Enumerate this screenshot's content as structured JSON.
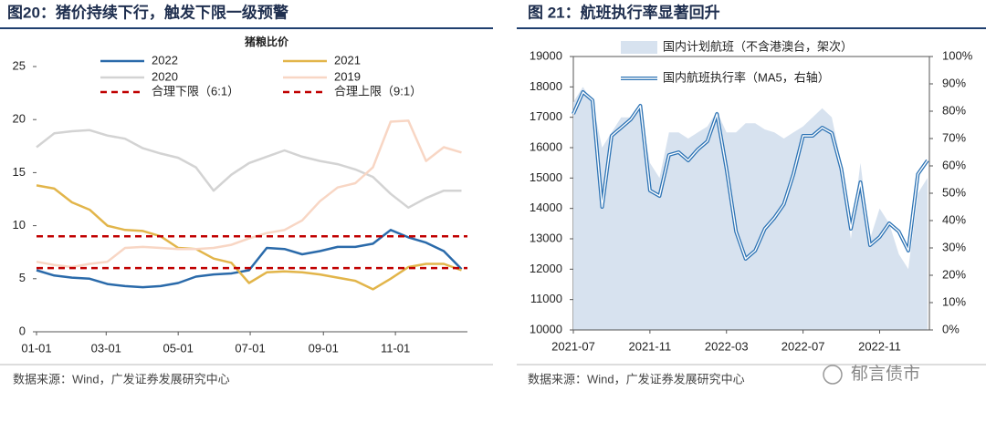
{
  "chart_data": [
    {
      "type": "line",
      "title": "图20：猪价持续下行，触发下限一级预警",
      "subtitle": "猪粮比价",
      "source": "数据来源：Wind，广发证券发展研究中心",
      "x": [
        0,
        15,
        30,
        45,
        60,
        75,
        90,
        105,
        120,
        135,
        150,
        165,
        180,
        195,
        210,
        225,
        240,
        255,
        270,
        285,
        300,
        315,
        330,
        345,
        360
      ],
      "xlim": [
        0,
        365
      ],
      "xticks": [
        {
          "value": 0,
          "label": "01-01"
        },
        {
          "value": 59,
          "label": "03-01"
        },
        {
          "value": 120,
          "label": "05-01"
        },
        {
          "value": 181,
          "label": "07-01"
        },
        {
          "value": 243,
          "label": "09-01"
        },
        {
          "value": 304,
          "label": "11-01"
        }
      ],
      "ylim": [
        0,
        25
      ],
      "yticks": [
        0,
        5,
        10,
        15,
        20,
        25
      ],
      "series": [
        {
          "name": "2022",
          "color": "#2a6aaa",
          "linestyle": "solid",
          "values": [
            5.8,
            5.3,
            5.1,
            5.0,
            4.5,
            4.3,
            4.2,
            4.3,
            4.6,
            5.2,
            5.4,
            5.5,
            5.8,
            7.9,
            7.8,
            7.3,
            7.6,
            8.0,
            8.0,
            8.3,
            9.6,
            8.9,
            8.4,
            7.6,
            5.9
          ]
        },
        {
          "name": "2021",
          "color": "#e2b54a",
          "linestyle": "solid",
          "values": [
            13.8,
            13.5,
            12.2,
            11.5,
            10.0,
            9.6,
            9.5,
            9.0,
            7.9,
            7.8,
            6.9,
            6.5,
            4.6,
            5.6,
            5.7,
            5.6,
            5.4,
            5.1,
            4.8,
            4.0,
            5.0,
            6.1,
            6.4,
            6.4,
            5.8
          ]
        },
        {
          "name": "2020",
          "color": "#d3d3d3",
          "linestyle": "solid",
          "values": [
            17.4,
            18.7,
            18.9,
            19.0,
            18.5,
            18.2,
            17.3,
            16.8,
            16.4,
            15.5,
            13.3,
            14.8,
            15.9,
            16.5,
            17.1,
            16.5,
            16.1,
            15.8,
            15.3,
            14.6,
            13.0,
            11.7,
            12.6,
            13.3,
            13.3
          ]
        },
        {
          "name": "2019",
          "color": "#f8d6c4",
          "linestyle": "solid",
          "values": [
            6.6,
            6.3,
            6.1,
            6.4,
            6.6,
            7.9,
            8.0,
            7.9,
            7.8,
            7.8,
            7.9,
            8.2,
            8.8,
            9.3,
            9.6,
            10.5,
            12.3,
            13.6,
            14.0,
            15.5,
            19.8,
            19.9,
            16.1,
            17.4,
            16.9
          ]
        }
      ],
      "hlines": [
        {
          "name": "合理下限（6:1）",
          "color": "#c00000",
          "linestyle": "dashed",
          "value": 6
        },
        {
          "name": "合理上限（9:1）",
          "color": "#c00000",
          "linestyle": "dashed",
          "value": 9
        }
      ],
      "grid": false
    },
    {
      "type": "line",
      "title": "图 21：航班执行率显著回升",
      "source": "数据来源：Wind，广发证券发展研究中心",
      "x": [
        0,
        0.5,
        1,
        1.5,
        2,
        2.5,
        3,
        3.5,
        4,
        4.5,
        5,
        5.5,
        6,
        6.5,
        7,
        7.5,
        8,
        8.5,
        9,
        9.5,
        10,
        10.5,
        11,
        11.5,
        12,
        12.5,
        13,
        13.5,
        14,
        14.5,
        15,
        15.5,
        16,
        16.5,
        17,
        17.5,
        18,
        18.5
      ],
      "xlim": [
        0,
        18.6
      ],
      "xticks": [
        {
          "value": 0,
          "label": "2021-07"
        },
        {
          "value": 4,
          "label": "2021-11"
        },
        {
          "value": 8,
          "label": "2022-03"
        },
        {
          "value": 12,
          "label": "2022-07"
        },
        {
          "value": 16,
          "label": "2022-11"
        }
      ],
      "ylim": [
        10000,
        19000
      ],
      "yticks": [
        10000,
        11000,
        12000,
        13000,
        14000,
        15000,
        16000,
        17000,
        18000,
        19000
      ],
      "y2lim": [
        0,
        100
      ],
      "y2ticks": [
        {
          "value": 0,
          "label": "0%"
        },
        {
          "value": 10,
          "label": "10%"
        },
        {
          "value": 20,
          "label": "20%"
        },
        {
          "value": 30,
          "label": "30%"
        },
        {
          "value": 40,
          "label": "40%"
        },
        {
          "value": 50,
          "label": "50%"
        },
        {
          "value": 60,
          "label": "60%"
        },
        {
          "value": 70,
          "label": "70%"
        },
        {
          "value": 80,
          "label": "80%"
        },
        {
          "value": 90,
          "label": "90%"
        },
        {
          "value": 100,
          "label": "100%"
        }
      ],
      "series": [
        {
          "name": "国内计划航班（不含港澳台，架次）",
          "type": "area",
          "color": "#d7e2ef",
          "values": [
            17500,
            18000,
            17500,
            16000,
            16500,
            17000,
            17000,
            17300,
            15500,
            15000,
            16500,
            16500,
            16300,
            16500,
            16700,
            17200,
            16500,
            16500,
            16800,
            16800,
            16600,
            16500,
            16300,
            16500,
            16700,
            17000,
            17300,
            17000,
            15500,
            13000,
            15500,
            13000,
            14000,
            13500,
            12500,
            12000,
            14500,
            15000
          ]
        },
        {
          "name": "国内航班执行率（MA5，右轴）",
          "type": "line",
          "axis": "y2",
          "color": "#2e74b5",
          "linestyle": "double",
          "values": [
            79,
            87,
            84,
            45,
            71,
            74,
            77,
            82,
            51,
            49,
            64,
            65,
            62,
            66,
            69,
            79,
            59,
            36,
            26,
            29,
            37,
            41,
            46,
            57,
            71,
            71,
            74,
            72,
            59,
            37,
            54,
            31,
            34,
            39,
            36,
            29,
            57,
            62
          ]
        }
      ],
      "grid": false,
      "frame": true
    },
    "watermark_placeholder"
  ],
  "watermark": "郁言债市"
}
